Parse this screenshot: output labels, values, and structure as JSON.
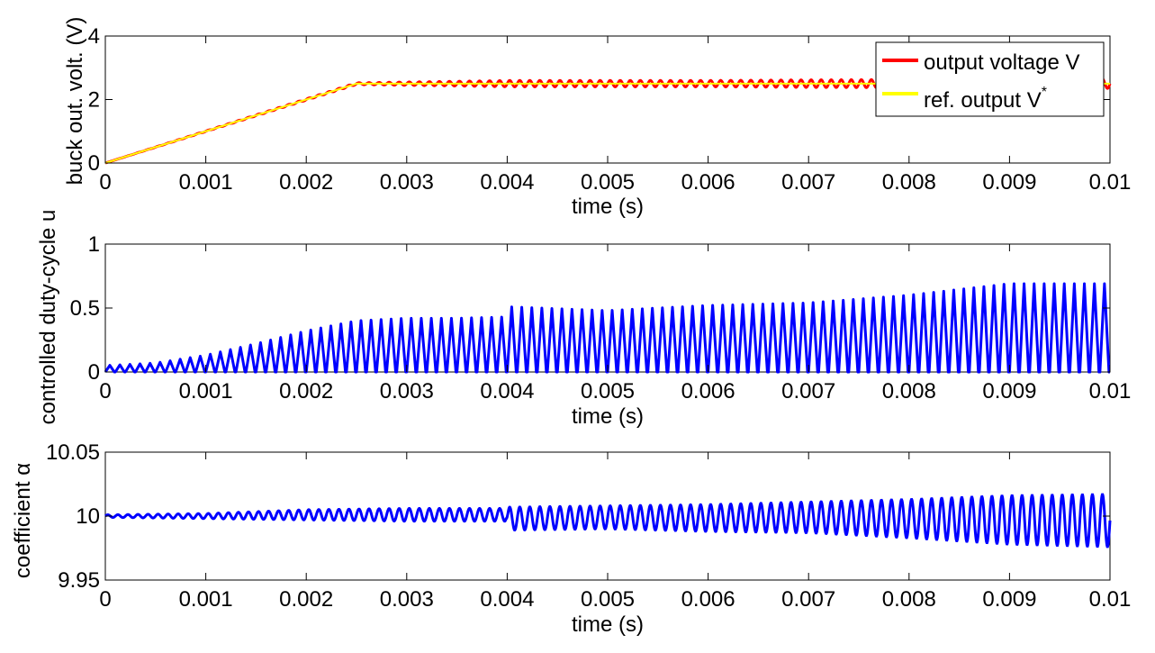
{
  "chart_data": [
    {
      "type": "line",
      "xlabel": "time (s)",
      "ylabel": "buck out. volt. (V)",
      "xlim": [
        0,
        0.01
      ],
      "ylim": [
        0,
        4
      ],
      "xticks": [
        0,
        0.001,
        0.002,
        0.003,
        0.004,
        0.005,
        0.006,
        0.007,
        0.008,
        0.009,
        0.01
      ],
      "xtick_labels": [
        "0",
        "0.001",
        "0.002",
        "0.003",
        "0.004",
        "0.005",
        "0.006",
        "0.007",
        "0.008",
        "0.009",
        "0.01"
      ],
      "yticks": [
        0,
        2,
        4
      ],
      "ytick_labels": [
        "0",
        "2",
        "4"
      ],
      "grid": false,
      "legend": {
        "placement": "top-right",
        "entries": [
          {
            "label": "output voltage V",
            "color": "#ff0000"
          },
          {
            "label": "ref. output V",
            "sup": "*",
            "color": "#ffff00"
          }
        ]
      },
      "series": [
        {
          "name": "output voltage V",
          "color": "#ff0000",
          "x": [
            0,
            0.0025,
            0.004,
            0.005,
            0.006,
            0.007,
            0.008,
            0.009,
            0.01
          ],
          "values": [
            0,
            2.5,
            2.5,
            2.5,
            2.5,
            2.5,
            2.5,
            2.5,
            2.5
          ],
          "ripple_amplitude": [
            0,
            0.03,
            0.1,
            0.1,
            0.1,
            0.12,
            0.13,
            0.14,
            0.15
          ],
          "ripple_period": 0.0001
        },
        {
          "name": "ref. output V*",
          "color": "#ffff00",
          "x": [
            0,
            0.0025,
            0.01
          ],
          "values": [
            0,
            2.5,
            2.5
          ]
        }
      ]
    },
    {
      "type": "line",
      "xlabel": "time (s)",
      "ylabel": "controlled duty-cycle u",
      "xlim": [
        0,
        0.01
      ],
      "ylim": [
        0,
        1
      ],
      "xticks": [
        0,
        0.001,
        0.002,
        0.003,
        0.004,
        0.005,
        0.006,
        0.007,
        0.008,
        0.009,
        0.01
      ],
      "xtick_labels": [
        "0",
        "0.001",
        "0.002",
        "0.003",
        "0.004",
        "0.005",
        "0.006",
        "0.007",
        "0.008",
        "0.009",
        "0.01"
      ],
      "yticks": [
        0,
        0.5,
        1
      ],
      "ytick_labels": [
        "0",
        "0.5",
        "1"
      ],
      "grid": false,
      "series": [
        {
          "name": "u",
          "color": "#0000ff",
          "pulse_period": 0.0001,
          "envelope_x": [
            0,
            0.0005,
            0.001,
            0.0015,
            0.002,
            0.0025,
            0.003,
            0.0035,
            0.00399,
            0.00401,
            0.005,
            0.006,
            0.007,
            0.008,
            0.009,
            0.01
          ],
          "envelope_max": [
            0.05,
            0.07,
            0.13,
            0.22,
            0.32,
            0.4,
            0.42,
            0.42,
            0.43,
            0.51,
            0.48,
            0.52,
            0.54,
            0.6,
            0.69,
            0.69
          ],
          "baseline": 0
        }
      ]
    },
    {
      "type": "line",
      "xlabel": "time (s)",
      "ylabel": "coefficient α",
      "xlim": [
        0,
        0.01
      ],
      "ylim": [
        9.95,
        10.05
      ],
      "xticks": [
        0,
        0.001,
        0.002,
        0.003,
        0.004,
        0.005,
        0.006,
        0.007,
        0.008,
        0.009,
        0.01
      ],
      "xtick_labels": [
        "0",
        "0.001",
        "0.002",
        "0.003",
        "0.004",
        "0.005",
        "0.006",
        "0.007",
        "0.008",
        "0.009",
        "0.01"
      ],
      "yticks": [
        9.95,
        10,
        10.05
      ],
      "ytick_labels": [
        "9.95",
        "10",
        "10.05"
      ],
      "grid": false,
      "series": [
        {
          "name": "alpha",
          "color": "#0000ff",
          "oscillation_period": 0.0001,
          "center": 10,
          "envelope_x": [
            0,
            0.001,
            0.002,
            0.003,
            0.00399,
            0.00401,
            0.005,
            0.006,
            0.007,
            0.008,
            0.009,
            0.01
          ],
          "envelope_upper": [
            10.001,
            10.002,
            10.005,
            10.006,
            10.006,
            10.007,
            10.008,
            10.009,
            10.011,
            10.013,
            10.016,
            10.017
          ],
          "envelope_lower": [
            9.999,
            9.998,
            9.997,
            9.996,
            9.996,
            9.989,
            9.99,
            9.988,
            9.987,
            9.983,
            9.978,
            9.976
          ]
        }
      ]
    }
  ]
}
